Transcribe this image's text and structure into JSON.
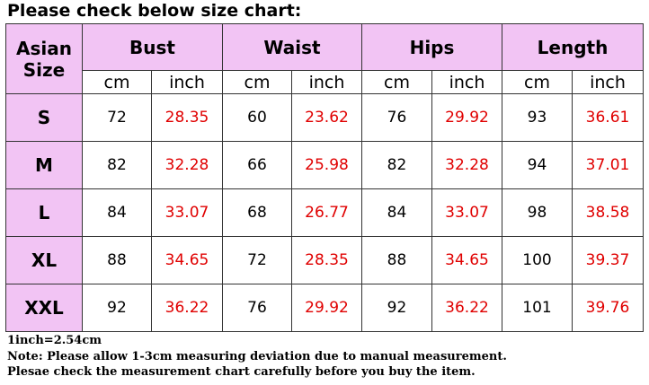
{
  "title": "Please check below size chart:",
  "table": {
    "corner": "Asian Size",
    "groups": [
      "Bust",
      "Waist",
      "Hips",
      "Length"
    ],
    "units": [
      "cm",
      "inch",
      "cm",
      "inch",
      "cm",
      "inch",
      "cm",
      "inch"
    ],
    "rows": [
      {
        "size": "S",
        "values": [
          72,
          28.35,
          60,
          23.62,
          76,
          29.92,
          93,
          36.61
        ]
      },
      {
        "size": "M",
        "values": [
          82,
          32.28,
          66,
          25.98,
          82,
          32.28,
          94,
          37.01
        ]
      },
      {
        "size": "L",
        "values": [
          84,
          33.07,
          68,
          26.77,
          84,
          33.07,
          98,
          38.58
        ]
      },
      {
        "size": "XL",
        "values": [
          88,
          34.65,
          72,
          28.35,
          88,
          34.65,
          100,
          39.37
        ]
      },
      {
        "size": "XXL",
        "values": [
          92,
          36.22,
          76,
          29.92,
          92,
          36.22,
          101,
          39.76
        ]
      }
    ]
  },
  "notes": [
    "1inch=2.54cm",
    "Note: Please allow 1-3cm measuring deviation due to manual measurement.",
    "Plesae check the measurement chart carefully before you buy the item."
  ]
}
